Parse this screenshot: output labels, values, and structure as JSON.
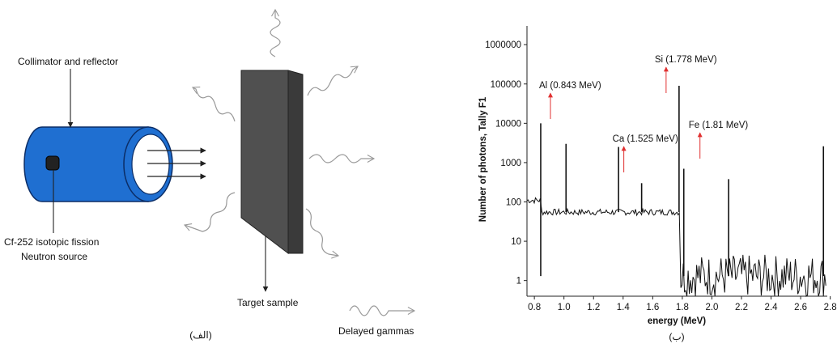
{
  "diagram": {
    "collimator_label": "Collimator and reflector",
    "source_label_line1": "Cf-252 isotopic fission",
    "source_label_line2": "Neutron source",
    "target_label": "Target sample",
    "gammas_label": "Delayed gammas",
    "caption": "(الف)",
    "colors": {
      "cylinder": "#1f6fd1",
      "target": "#505050",
      "target_side": "#3a3a3a"
    }
  },
  "chart_data": {
    "type": "line",
    "caption": "(ب)",
    "xlabel": "energy (MeV)",
    "ylabel": "Number of photons, Tally F1",
    "xlim": [
      0.75,
      2.78
    ],
    "ylim": [
      0.4,
      3000000
    ],
    "yscale": "log",
    "x_ticks": [
      "0.8",
      "1.0",
      "1.2",
      "1.4",
      "1.6",
      "1.8",
      "2.0",
      "2.2",
      "2.4",
      "2.6",
      "2.8"
    ],
    "y_ticks": [
      "1",
      "10",
      "100",
      "1000",
      "10000",
      "100000",
      "1000000"
    ],
    "baseline": [
      {
        "from": 0.75,
        "to": 0.84,
        "value": 110
      },
      {
        "from": 0.85,
        "to": 1.78,
        "value": 55
      },
      {
        "from": 1.79,
        "to": 2.77,
        "value": 1.3
      }
    ],
    "peaks": [
      {
        "x": 0.843,
        "y": 10000
      },
      {
        "x": 1.014,
        "y": 3000
      },
      {
        "x": 1.369,
        "y": 2500
      },
      {
        "x": 1.525,
        "y": 300
      },
      {
        "x": 1.778,
        "y": 90000
      },
      {
        "x": 1.81,
        "y": 700
      },
      {
        "x": 2.113,
        "y": 380
      },
      {
        "x": 2.754,
        "y": 2600
      }
    ],
    "annotations": [
      {
        "text": "Al (0.843 MeV)",
        "x": 0.843
      },
      {
        "text": "Ca (1.525 MeV)",
        "x": 1.525
      },
      {
        "text": "Si (1.778 MeV)",
        "x": 1.778
      },
      {
        "text": "Fe (1.81 MeV)",
        "x": 1.81
      }
    ],
    "annotation_color": "#e03030"
  }
}
